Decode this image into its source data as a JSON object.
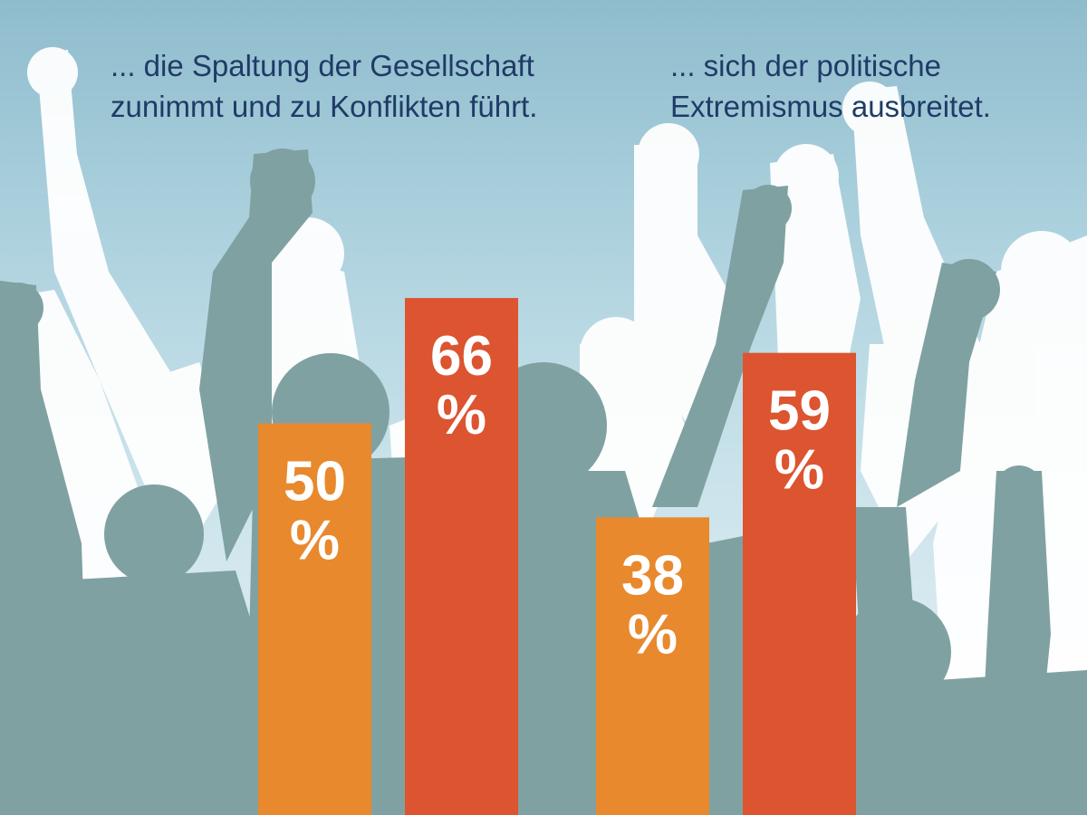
{
  "captions": {
    "left": [
      "... die Spaltung der Gesellschaft",
      "zunimmt und zu Konflikten führt."
    ],
    "right": [
      "... sich der politische",
      "Extremismus ausbreitet."
    ]
  },
  "background": {
    "image": "crowd-raised-fists-silhouette",
    "sky_top": "#8fbccd",
    "sky_bottom": "#e6f0f4",
    "front_silhouette": "#80a1a1",
    "back_silhouette": "#ffffff"
  },
  "chart_data": {
    "type": "bar",
    "groups": [
      {
        "caption": "... die Spaltung der Gesellschaft zunimmt und zu Konflikten führt.",
        "bars": [
          {
            "value": 50,
            "label_number": "50",
            "label_unit": "%",
            "color": "#e8892e"
          },
          {
            "value": 66,
            "label_number": "66",
            "label_unit": "%",
            "color": "#dc5430"
          }
        ]
      },
      {
        "caption": "... sich der politische Extremismus ausbreitet.",
        "bars": [
          {
            "value": 38,
            "label_number": "38",
            "label_unit": "%",
            "color": "#e8892e"
          },
          {
            "value": 59,
            "label_number": "59",
            "label_unit": "%",
            "color": "#dc5430"
          }
        ]
      }
    ],
    "value_unit": "%",
    "axes_visible": false,
    "legend": "none"
  }
}
